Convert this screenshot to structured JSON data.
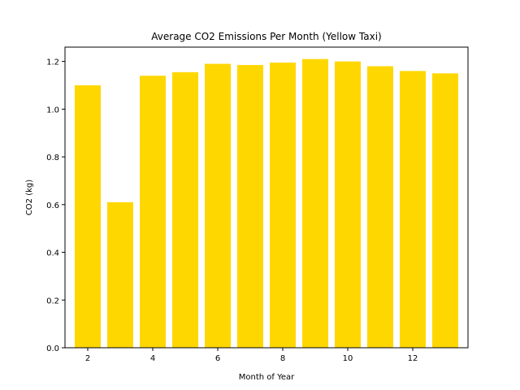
{
  "chart_data": {
    "type": "bar",
    "title": "Average CO2 Emissions Per Month (Yellow Taxi)",
    "xlabel": "Month of Year",
    "ylabel": "CO2 (kg)",
    "x": [
      2,
      3,
      4,
      5,
      6,
      7,
      8,
      9,
      10,
      11,
      12,
      13
    ],
    "values": [
      1.1,
      0.61,
      1.14,
      1.155,
      1.19,
      1.185,
      1.195,
      1.21,
      1.2,
      1.18,
      1.16,
      1.15
    ],
    "xlim": [
      1.3,
      13.7
    ],
    "ylim": [
      0,
      1.26
    ],
    "xticks": [
      2,
      4,
      6,
      8,
      10,
      12
    ],
    "xtick_labels": [
      "2",
      "4",
      "6",
      "8",
      "10",
      "12"
    ],
    "yticks": [
      0,
      0.2,
      0.4,
      0.6,
      0.8,
      1.0,
      1.2
    ],
    "ytick_labels": [
      "0.0",
      "0.2",
      "0.4",
      "0.6",
      "0.8",
      "1.0",
      "1.2"
    ],
    "bar_color": "#FFD700",
    "grid": false,
    "legend": "none"
  }
}
